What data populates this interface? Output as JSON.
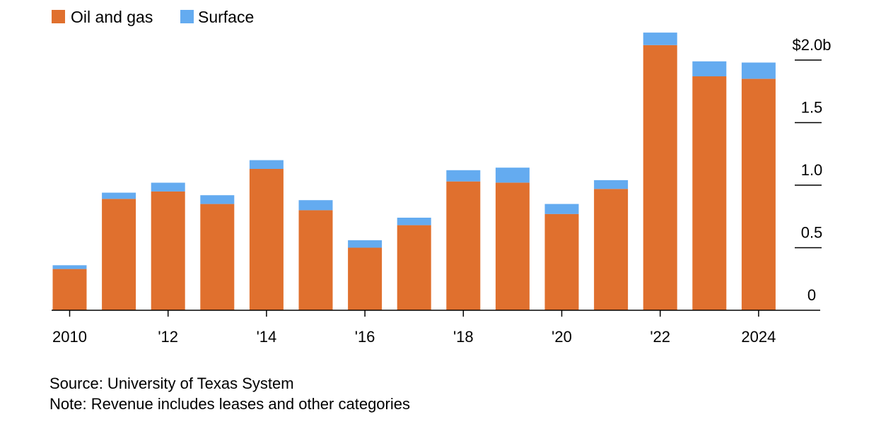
{
  "colors": {
    "oil_and_gas": "#e0702e",
    "surface": "#64abf0",
    "axis": "#000000",
    "text": "#000000"
  },
  "legend": {
    "oil_and_gas": "Oil and gas",
    "surface": "Surface"
  },
  "chart_data": {
    "type": "bar",
    "stacked": true,
    "title": "",
    "xlabel": "",
    "ylabel": "",
    "ylim": [
      0,
      2.2
    ],
    "y_unit": "$ billions",
    "years": [
      2010,
      2011,
      2012,
      2013,
      2014,
      2015,
      2016,
      2017,
      2018,
      2019,
      2020,
      2021,
      2022,
      2023,
      2024
    ],
    "series": [
      {
        "name": "Oil and gas",
        "color_key": "oil_and_gas",
        "values": [
          0.33,
          0.89,
          0.95,
          0.85,
          1.13,
          0.8,
          0.5,
          0.68,
          1.03,
          1.02,
          0.77,
          0.97,
          2.12,
          1.87,
          1.85
        ]
      },
      {
        "name": "Surface",
        "color_key": "surface",
        "values": [
          0.03,
          0.05,
          0.07,
          0.07,
          0.07,
          0.08,
          0.06,
          0.06,
          0.09,
          0.12,
          0.08,
          0.07,
          0.1,
          0.12,
          0.13
        ]
      }
    ],
    "x_ticks": [
      {
        "index": 0,
        "label": "2010"
      },
      {
        "index": 2,
        "label": "'12"
      },
      {
        "index": 4,
        "label": "'14"
      },
      {
        "index": 6,
        "label": "'16"
      },
      {
        "index": 8,
        "label": "'18"
      },
      {
        "index": 10,
        "label": "'20"
      },
      {
        "index": 12,
        "label": "'22"
      },
      {
        "index": 14,
        "label": "2024"
      }
    ],
    "y_ticks": [
      {
        "value": 0,
        "label": "0"
      },
      {
        "value": 0.5,
        "label": "0.5"
      },
      {
        "value": 1.0,
        "label": "1.0"
      },
      {
        "value": 1.5,
        "label": "1.5"
      },
      {
        "value": 2.0,
        "label": "$2.0b"
      }
    ],
    "legend_position": "top-left",
    "y_axis_side": "right",
    "grid": false
  },
  "notes": {
    "source": "Source: University of Texas System",
    "note": "Note: Revenue includes leases and other categories"
  }
}
